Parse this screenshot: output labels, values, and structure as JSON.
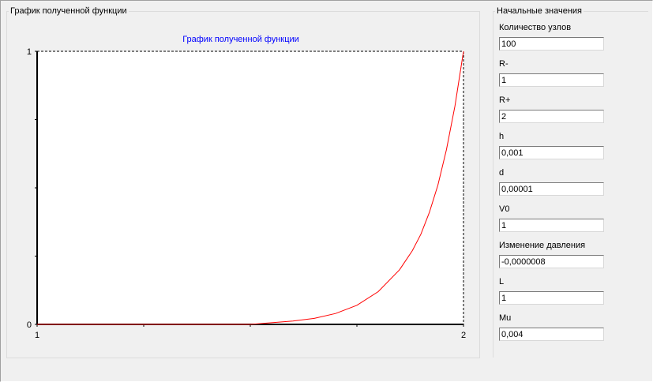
{
  "left_group": {
    "title": "График полученной функции"
  },
  "right_group": {
    "title": "Начальные значения"
  },
  "chart_data": {
    "type": "line",
    "title": "График полученной функции",
    "xlim": [
      1,
      2
    ],
    "ylim": [
      0,
      1
    ],
    "x_ticks": [
      "1",
      "2"
    ],
    "y_ticks": [
      "0",
      "1"
    ],
    "series": [
      {
        "color": "#ff0000",
        "x": [
          1.0,
          1.5,
          1.55,
          1.6,
          1.65,
          1.7,
          1.75,
          1.8,
          1.85,
          1.88,
          1.9,
          1.92,
          1.94,
          1.96,
          1.98,
          2.0
        ],
        "y": [
          0.0,
          0.0,
          0.006,
          0.012,
          0.022,
          0.04,
          0.07,
          0.12,
          0.2,
          0.27,
          0.33,
          0.41,
          0.51,
          0.64,
          0.8,
          1.0
        ]
      }
    ],
    "grid": false
  },
  "params": [
    {
      "label": "Количество узлов",
      "value": "100"
    },
    {
      "label": "R-",
      "value": "1"
    },
    {
      "label": "R+",
      "value": "2"
    },
    {
      "label": "h",
      "value": "0,001"
    },
    {
      "label": "d",
      "value": "0,00001"
    },
    {
      "label": "V0",
      "value": "1"
    },
    {
      "label": "Изменение давления",
      "value": "-0,0000008"
    },
    {
      "label": "L",
      "value": "1"
    },
    {
      "label": "Mu",
      "value": "0,004"
    }
  ]
}
